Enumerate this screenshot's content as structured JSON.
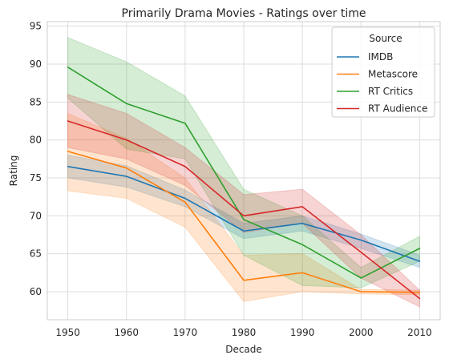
{
  "chart_data": {
    "type": "line",
    "title": "Primarily Drama Movies - Ratings over time",
    "xlabel": "Decade",
    "ylabel": "Rating",
    "x": [
      1950,
      1960,
      1970,
      1980,
      1990,
      2000,
      2010
    ],
    "xlim": [
      1946.5,
      2013.5
    ],
    "ylim": [
      56.3,
      95.6
    ],
    "yticks": [
      60,
      65,
      70,
      75,
      80,
      85,
      90,
      95
    ],
    "grid": true,
    "legend": {
      "title": "Source",
      "placement": "top-right"
    },
    "series": [
      {
        "name": "IMDB",
        "color": "#1f77b4",
        "values": [
          76.5,
          75.2,
          72.3,
          68.0,
          69.0,
          66.8,
          64.0
        ],
        "lower": [
          75.0,
          73.8,
          71.2,
          67.0,
          68.0,
          65.7,
          63.2
        ],
        "upper": [
          78.0,
          76.6,
          73.4,
          69.0,
          70.0,
          67.6,
          64.8
        ]
      },
      {
        "name": "Metascore",
        "color": "#ff7f0e",
        "values": [
          78.5,
          76.3,
          71.8,
          61.5,
          62.5,
          60.0,
          59.9
        ],
        "lower": [
          73.3,
          72.3,
          68.5,
          58.7,
          60.0,
          59.7,
          59.6
        ],
        "upper": [
          83.5,
          80.2,
          75.0,
          64.8,
          65.0,
          60.3,
          60.2
        ]
      },
      {
        "name": "RT Critics",
        "color": "#2ca02c",
        "values": [
          89.6,
          84.8,
          82.2,
          69.5,
          66.2,
          61.8,
          65.7
        ],
        "lower": [
          85.5,
          78.8,
          77.5,
          64.8,
          60.8,
          60.5,
          64.0
        ],
        "upper": [
          93.5,
          90.3,
          85.8,
          73.5,
          70.0,
          63.2,
          67.3
        ]
      },
      {
        "name": "RT Audience",
        "color": "#d62728",
        "values": [
          82.5,
          80.0,
          76.5,
          70.0,
          71.2,
          65.2,
          59.1
        ],
        "lower": [
          79.0,
          77.5,
          74.0,
          67.8,
          69.0,
          61.8,
          58.0
        ],
        "upper": [
          86.0,
          83.5,
          79.0,
          72.8,
          73.5,
          67.5,
          60.2
        ]
      }
    ]
  }
}
